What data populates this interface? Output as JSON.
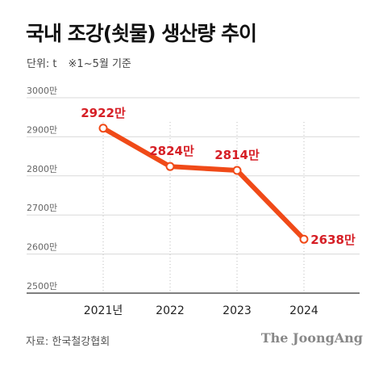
{
  "header": {
    "title": "국내 조강(쇳물) 생산량 추이",
    "unit": "단위: t",
    "note": "※1~5월 기준"
  },
  "footer": {
    "source": "자료: 한국철강협회",
    "brand": "The JoongAng"
  },
  "colors": {
    "line": "#f04a18",
    "label": "#d61f26",
    "grid": "#d9d9d9",
    "axis": "#333333"
  },
  "chart_data": {
    "type": "line",
    "categories": [
      "2021년",
      "2022",
      "2023",
      "2024"
    ],
    "series": [
      {
        "values": [
          2922,
          2824,
          2814,
          2638
        ]
      }
    ],
    "data_labels": [
      "2922만",
      "2824만",
      "2814만",
      "2638만"
    ],
    "y_ticks": [
      3000,
      2900,
      2800,
      2700,
      2600,
      2500
    ],
    "y_tick_labels": [
      "3000만",
      "2900만",
      "2800만",
      "2700만",
      "2600만",
      "2500만"
    ],
    "ylim": [
      2500,
      3000
    ],
    "grid": true,
    "title": "국내 조강(쇳물) 생산량 추이",
    "xlabel": "",
    "ylabel": ""
  }
}
